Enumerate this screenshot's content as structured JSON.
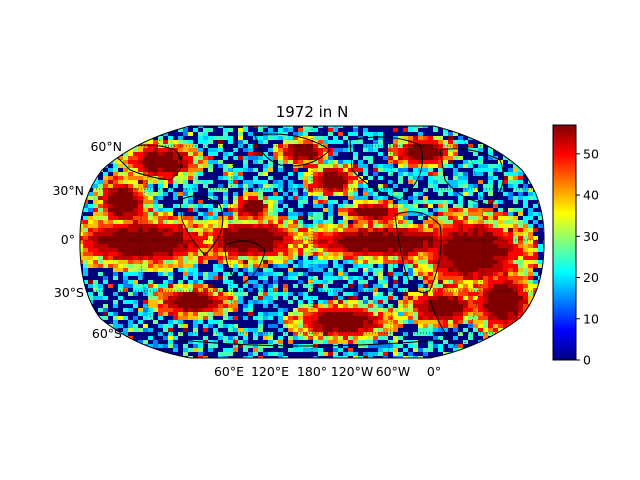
{
  "title": "1972 in N",
  "lat_labels": [
    "60°N",
    "30°N",
    "0°",
    "30°S",
    "60°S"
  ],
  "lon_labels": [
    "60°E",
    "120°E",
    "180°",
    "120°W",
    "60°W",
    "0°"
  ],
  "colorbar": {
    "colormap": "jet",
    "vmin": 0,
    "vmax": 57,
    "ticks": [
      "0",
      "10",
      "20",
      "30",
      "40",
      "50"
    ]
  },
  "map": {
    "projection": "Robinson",
    "central_longitude": 180,
    "background_value_color": "#00007f",
    "high_value_color": "#7f0000"
  }
}
